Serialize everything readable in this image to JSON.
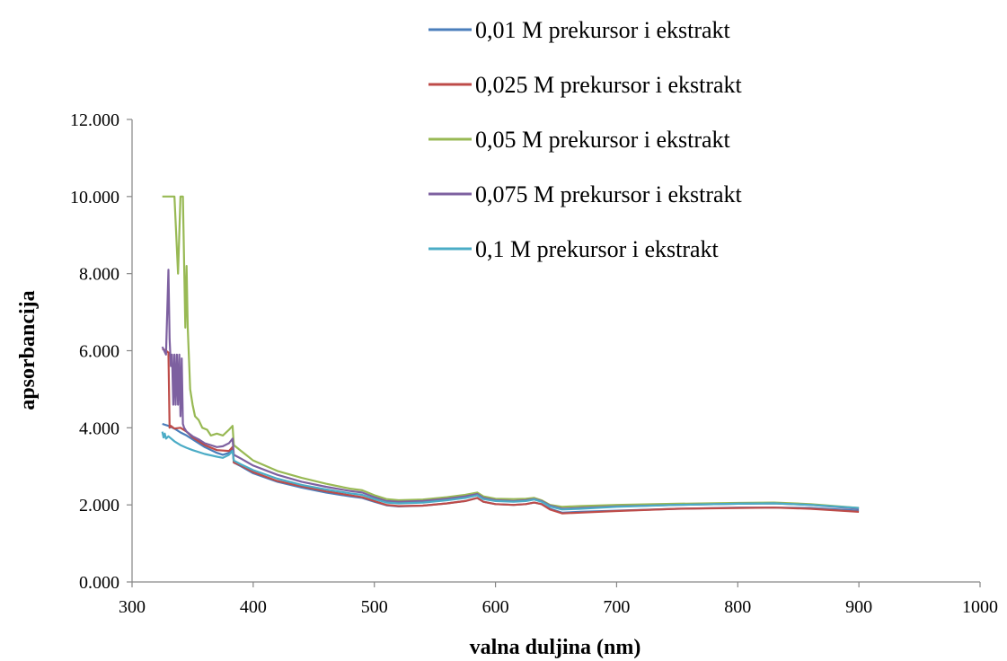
{
  "chart_data": {
    "type": "line",
    "xlabel": "valna duljina (nm)",
    "ylabel": "apsorbancija",
    "xlim": [
      300,
      1000
    ],
    "ylim": [
      0,
      12
    ],
    "x_ticks": [
      300,
      400,
      500,
      600,
      700,
      800,
      900,
      1000
    ],
    "y_ticks": [
      0,
      2,
      4,
      6,
      8,
      10,
      12
    ],
    "x_tick_labels": [
      "300",
      "400",
      "500",
      "600",
      "700",
      "800",
      "900",
      "1000"
    ],
    "y_tick_labels": [
      "0.000",
      "2.000",
      "4.000",
      "6.000",
      "8.000",
      "10.000",
      "12.000"
    ],
    "grid": false,
    "legend_position": "top-right",
    "series": [
      {
        "name": "0,01 M prekursor i ekstrakt",
        "color": "#4a7ebb",
        "points": [
          [
            325,
            4.1
          ],
          [
            330,
            4.05
          ],
          [
            335,
            3.98
          ],
          [
            340,
            3.88
          ],
          [
            345,
            3.8
          ],
          [
            350,
            3.7
          ],
          [
            360,
            3.5
          ],
          [
            370,
            3.35
          ],
          [
            375,
            3.3
          ],
          [
            380,
            3.35
          ],
          [
            383,
            3.45
          ],
          [
            384,
            3.1
          ],
          [
            390,
            3.0
          ],
          [
            400,
            2.82
          ],
          [
            420,
            2.6
          ],
          [
            440,
            2.45
          ],
          [
            460,
            2.32
          ],
          [
            480,
            2.22
          ],
          [
            490,
            2.18
          ],
          [
            500,
            2.08
          ],
          [
            510,
            1.99
          ],
          [
            520,
            1.96
          ],
          [
            540,
            1.98
          ],
          [
            560,
            2.04
          ],
          [
            575,
            2.1
          ],
          [
            585,
            2.18
          ],
          [
            590,
            2.08
          ],
          [
            600,
            2.02
          ],
          [
            615,
            2.0
          ],
          [
            625,
            2.02
          ],
          [
            632,
            2.06
          ],
          [
            638,
            2.02
          ],
          [
            645,
            1.9
          ],
          [
            655,
            1.8
          ],
          [
            670,
            1.82
          ],
          [
            700,
            1.85
          ],
          [
            750,
            1.9
          ],
          [
            800,
            1.93
          ],
          [
            830,
            1.93
          ],
          [
            860,
            1.92
          ],
          [
            900,
            1.85
          ]
        ]
      },
      {
        "name": "0,025 M prekursor i ekstrakt",
        "color": "#be4b48",
        "points": [
          [
            325,
            6.05
          ],
          [
            328,
            6.0
          ],
          [
            330,
            5.95
          ],
          [
            331,
            4.0
          ],
          [
            332,
            4.05
          ],
          [
            335,
            3.98
          ],
          [
            340,
            4.0
          ],
          [
            345,
            3.9
          ],
          [
            350,
            3.75
          ],
          [
            360,
            3.55
          ],
          [
            370,
            3.42
          ],
          [
            380,
            3.4
          ],
          [
            383,
            3.5
          ],
          [
            384,
            3.1
          ],
          [
            390,
            3.02
          ],
          [
            400,
            2.85
          ],
          [
            420,
            2.62
          ],
          [
            440,
            2.48
          ],
          [
            460,
            2.35
          ],
          [
            480,
            2.25
          ],
          [
            490,
            2.2
          ],
          [
            500,
            2.1
          ],
          [
            510,
            2.0
          ],
          [
            520,
            1.97
          ],
          [
            540,
            1.98
          ],
          [
            560,
            2.04
          ],
          [
            575,
            2.1
          ],
          [
            585,
            2.18
          ],
          [
            590,
            2.08
          ],
          [
            600,
            2.02
          ],
          [
            615,
            2.0
          ],
          [
            625,
            2.02
          ],
          [
            632,
            2.06
          ],
          [
            638,
            2.02
          ],
          [
            645,
            1.88
          ],
          [
            655,
            1.78
          ],
          [
            670,
            1.8
          ],
          [
            700,
            1.84
          ],
          [
            750,
            1.9
          ],
          [
            800,
            1.92
          ],
          [
            830,
            1.93
          ],
          [
            860,
            1.9
          ],
          [
            900,
            1.82
          ]
        ]
      },
      {
        "name": "0,05 M prekursor i ekstrakt",
        "color": "#98b954",
        "points": [
          [
            325,
            10.0
          ],
          [
            335,
            10.0
          ],
          [
            338,
            8.0
          ],
          [
            340,
            10.0
          ],
          [
            342,
            10.0
          ],
          [
            344,
            6.6
          ],
          [
            345,
            8.2
          ],
          [
            346,
            6.6
          ],
          [
            348,
            5.0
          ],
          [
            350,
            4.6
          ],
          [
            352,
            4.3
          ],
          [
            355,
            4.2
          ],
          [
            358,
            4.0
          ],
          [
            362,
            3.95
          ],
          [
            365,
            3.8
          ],
          [
            370,
            3.85
          ],
          [
            375,
            3.8
          ],
          [
            380,
            3.95
          ],
          [
            383,
            4.05
          ],
          [
            384,
            3.55
          ],
          [
            390,
            3.4
          ],
          [
            400,
            3.15
          ],
          [
            420,
            2.88
          ],
          [
            440,
            2.7
          ],
          [
            460,
            2.55
          ],
          [
            480,
            2.42
          ],
          [
            490,
            2.38
          ],
          [
            500,
            2.25
          ],
          [
            510,
            2.15
          ],
          [
            520,
            2.12
          ],
          [
            540,
            2.14
          ],
          [
            560,
            2.2
          ],
          [
            575,
            2.26
          ],
          [
            585,
            2.32
          ],
          [
            590,
            2.22
          ],
          [
            600,
            2.16
          ],
          [
            615,
            2.15
          ],
          [
            625,
            2.16
          ],
          [
            632,
            2.18
          ],
          [
            638,
            2.12
          ],
          [
            645,
            2.0
          ],
          [
            655,
            1.95
          ],
          [
            670,
            1.97
          ],
          [
            700,
            2.0
          ],
          [
            750,
            2.03
          ],
          [
            800,
            2.05
          ],
          [
            830,
            2.06
          ],
          [
            860,
            2.02
          ],
          [
            900,
            1.92
          ]
        ]
      },
      {
        "name": "0,075 M prekursor i ekstrakt",
        "color": "#7d60a0",
        "points": [
          [
            325,
            6.1
          ],
          [
            328,
            5.9
          ],
          [
            330,
            8.1
          ],
          [
            331,
            6.3
          ],
          [
            332,
            5.6
          ],
          [
            333,
            5.9
          ],
          [
            334,
            4.6
          ],
          [
            335,
            5.9
          ],
          [
            336,
            4.6
          ],
          [
            337,
            5.9
          ],
          [
            338,
            4.6
          ],
          [
            339,
            5.9
          ],
          [
            340,
            4.3
          ],
          [
            341,
            5.8
          ],
          [
            342,
            4.1
          ],
          [
            343,
            4.0
          ],
          [
            345,
            3.9
          ],
          [
            350,
            3.78
          ],
          [
            355,
            3.7
          ],
          [
            360,
            3.6
          ],
          [
            370,
            3.5
          ],
          [
            375,
            3.52
          ],
          [
            380,
            3.6
          ],
          [
            383,
            3.72
          ],
          [
            384,
            3.3
          ],
          [
            390,
            3.2
          ],
          [
            400,
            3.02
          ],
          [
            420,
            2.78
          ],
          [
            440,
            2.6
          ],
          [
            460,
            2.47
          ],
          [
            480,
            2.36
          ],
          [
            490,
            2.32
          ],
          [
            500,
            2.2
          ],
          [
            510,
            2.1
          ],
          [
            520,
            2.08
          ],
          [
            540,
            2.1
          ],
          [
            560,
            2.16
          ],
          [
            575,
            2.22
          ],
          [
            585,
            2.28
          ],
          [
            590,
            2.18
          ],
          [
            600,
            2.12
          ],
          [
            615,
            2.1
          ],
          [
            625,
            2.12
          ],
          [
            632,
            2.15
          ],
          [
            638,
            2.1
          ],
          [
            645,
            1.98
          ],
          [
            655,
            1.9
          ],
          [
            670,
            1.92
          ],
          [
            700,
            1.96
          ],
          [
            750,
            2.0
          ],
          [
            800,
            2.03
          ],
          [
            830,
            2.04
          ],
          [
            860,
            2.0
          ],
          [
            900,
            1.9
          ]
        ]
      },
      {
        "name": "0,1 M prekursor i ekstrakt",
        "color": "#4bacc6",
        "points": [
          [
            325,
            3.9
          ],
          [
            326,
            3.75
          ],
          [
            327,
            3.85
          ],
          [
            328,
            3.72
          ],
          [
            330,
            3.78
          ],
          [
            335,
            3.65
          ],
          [
            340,
            3.55
          ],
          [
            345,
            3.48
          ],
          [
            350,
            3.42
          ],
          [
            360,
            3.32
          ],
          [
            370,
            3.25
          ],
          [
            375,
            3.22
          ],
          [
            380,
            3.3
          ],
          [
            383,
            3.4
          ],
          [
            384,
            3.15
          ],
          [
            390,
            3.05
          ],
          [
            400,
            2.9
          ],
          [
            420,
            2.68
          ],
          [
            440,
            2.52
          ],
          [
            460,
            2.4
          ],
          [
            480,
            2.3
          ],
          [
            490,
            2.26
          ],
          [
            500,
            2.15
          ],
          [
            510,
            2.06
          ],
          [
            520,
            2.04
          ],
          [
            540,
            2.06
          ],
          [
            560,
            2.12
          ],
          [
            575,
            2.18
          ],
          [
            585,
            2.25
          ],
          [
            590,
            2.15
          ],
          [
            600,
            2.1
          ],
          [
            615,
            2.08
          ],
          [
            625,
            2.1
          ],
          [
            632,
            2.14
          ],
          [
            638,
            2.08
          ],
          [
            645,
            1.96
          ],
          [
            655,
            1.88
          ],
          [
            670,
            1.9
          ],
          [
            700,
            1.95
          ],
          [
            750,
            2.0
          ],
          [
            800,
            2.03
          ],
          [
            830,
            2.04
          ],
          [
            860,
            2.0
          ],
          [
            900,
            1.92
          ]
        ]
      }
    ]
  }
}
